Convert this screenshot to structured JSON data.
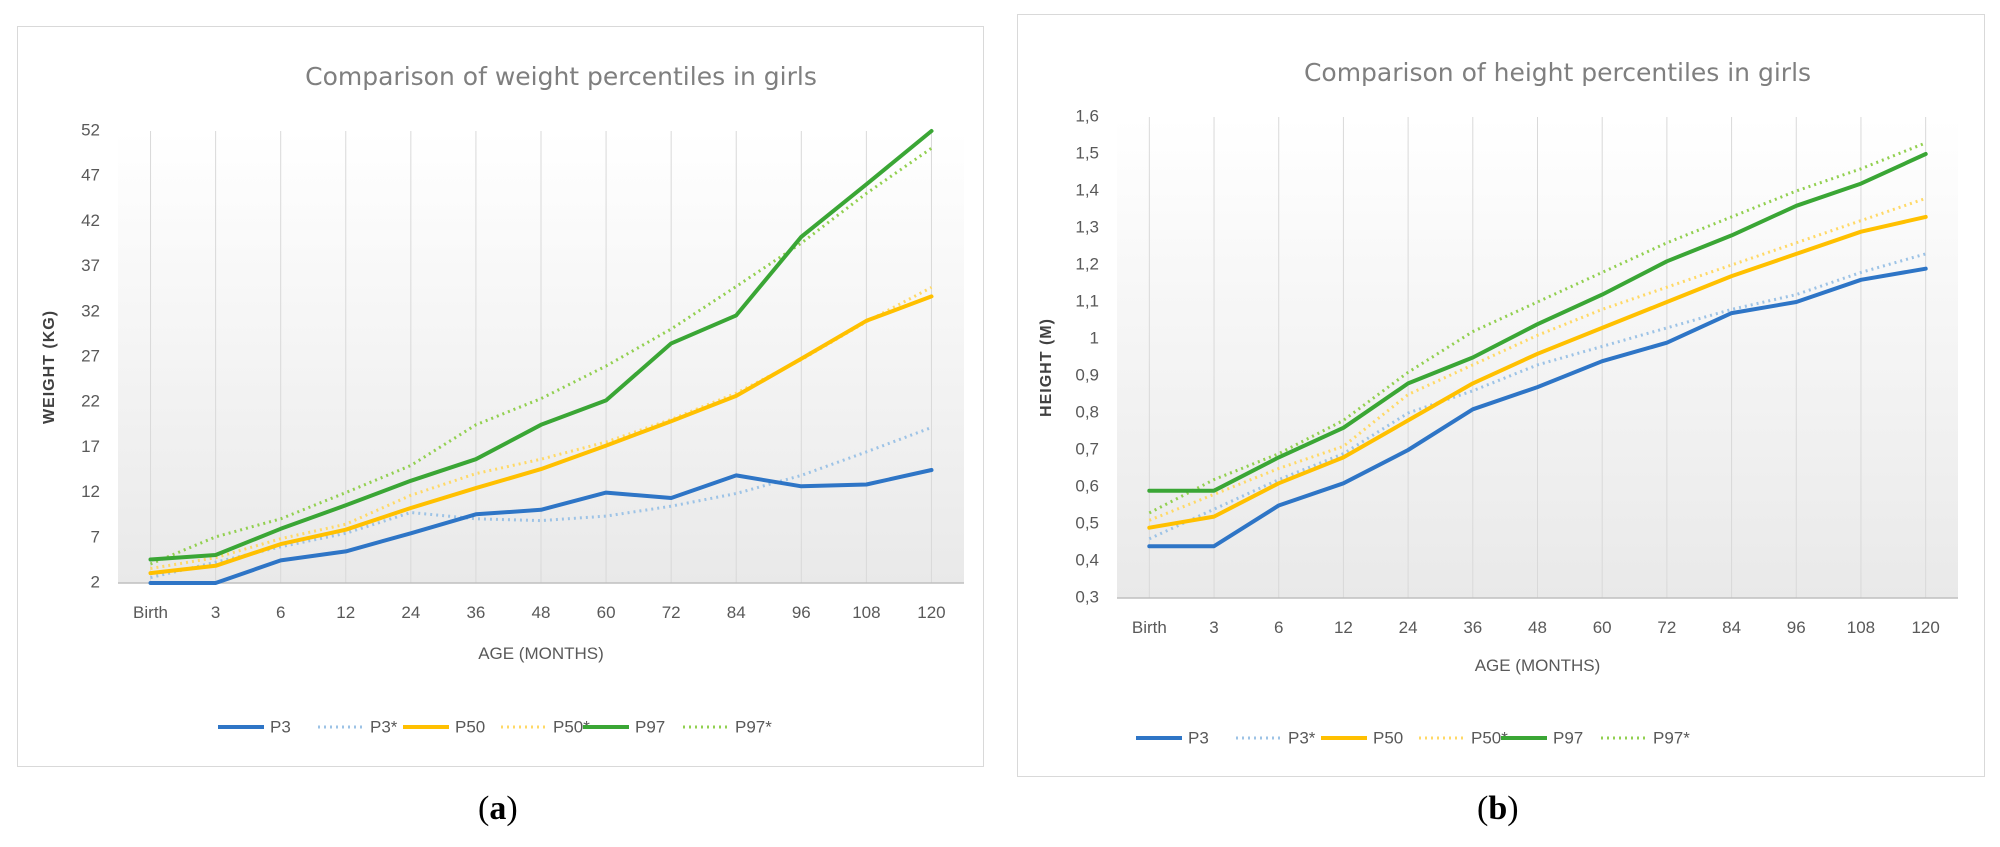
{
  "captions": {
    "a": {
      "open": "(",
      "letter": "a",
      "close": ")"
    },
    "b": {
      "open": "(",
      "letter": "b",
      "close": ")"
    }
  },
  "colors": {
    "P3": "#2e75c6",
    "P3*": "#9dc3e6",
    "P50": "#ffc000",
    "P50*": "#ffd966",
    "P97": "#3aa635",
    "P97*": "#92d050"
  },
  "chart_data": [
    {
      "type": "line",
      "title": "Comparison  of weight percentiles  in girls",
      "xlabel": "AGE (MONTHS)",
      "ylabel": "WEIGHT (KG)",
      "ylim": [
        2,
        52
      ],
      "yticks": [
        "2",
        "7",
        "12",
        "17",
        "22",
        "27",
        "32",
        "37",
        "42",
        "47",
        "52"
      ],
      "categories": [
        "Birth",
        "3",
        "6",
        "12",
        "24",
        "36",
        "48",
        "60",
        "72",
        "84",
        "96",
        "108",
        "120"
      ],
      "series": [
        {
          "name": "P3",
          "dashed": false,
          "values": [
            2.0,
            2.0,
            4.5,
            5.5,
            7.5,
            9.6,
            10.1,
            12.0,
            11.4,
            13.9,
            12.7,
            12.9,
            14.5
          ]
        },
        {
          "name": "P3*",
          "dashed": true,
          "values": [
            2.6,
            4.3,
            6.0,
            7.5,
            9.8,
            9.1,
            8.9,
            9.4,
            10.5,
            11.9,
            13.9,
            16.5,
            19.2
          ]
        },
        {
          "name": "P50",
          "dashed": false,
          "values": [
            3.1,
            3.9,
            6.3,
            7.9,
            10.3,
            12.5,
            14.6,
            17.2,
            19.9,
            22.7,
            26.8,
            31.0,
            33.7
          ]
        },
        {
          "name": "P50*",
          "dashed": true,
          "values": [
            3.6,
            4.8,
            6.9,
            8.5,
            11.7,
            14.1,
            15.7,
            17.6,
            20.1,
            23.0,
            26.7,
            30.9,
            34.7
          ]
        },
        {
          "name": "P97",
          "dashed": false,
          "values": [
            4.6,
            5.1,
            8.0,
            10.6,
            13.3,
            15.7,
            19.5,
            22.2,
            28.5,
            31.6,
            40.3,
            46.1,
            52.0
          ]
        },
        {
          "name": "P97*",
          "dashed": true,
          "values": [
            4.1,
            7.1,
            9.1,
            12.0,
            15.0,
            19.5,
            22.4,
            26.0,
            30.1,
            34.8,
            39.6,
            45.1,
            50.1
          ]
        }
      ],
      "legend": [
        "P3",
        "P3*",
        "P50",
        "P50*",
        "P97",
        "P97*"
      ],
      "legend_position": "bottom"
    },
    {
      "type": "line",
      "title": "Comparison  of height percentiles  in girls",
      "xlabel": "AGE (MONTHS)",
      "ylabel": "HEIGHT (M)",
      "ylim": [
        0.3,
        1.6
      ],
      "yticks": [
        "0,3",
        "0,4",
        "0,5",
        "0,6",
        "0,7",
        "0,8",
        "0,9",
        "1",
        "1,1",
        "1,2",
        "1,3",
        "1,4",
        "1,5",
        "1,6"
      ],
      "categories": [
        "Birth",
        "3",
        "6",
        "12",
        "24",
        "36",
        "48",
        "60",
        "72",
        "84",
        "96",
        "108",
        "120"
      ],
      "series": [
        {
          "name": "P3",
          "dashed": false,
          "values": [
            0.44,
            0.44,
            0.55,
            0.61,
            0.7,
            0.81,
            0.87,
            0.94,
            0.99,
            1.07,
            1.1,
            1.16,
            1.19
          ]
        },
        {
          "name": "P3*",
          "dashed": true,
          "values": [
            0.46,
            0.54,
            0.62,
            0.69,
            0.8,
            0.86,
            0.93,
            0.98,
            1.03,
            1.08,
            1.12,
            1.18,
            1.23
          ]
        },
        {
          "name": "P50",
          "dashed": false,
          "values": [
            0.49,
            0.52,
            0.61,
            0.68,
            0.78,
            0.88,
            0.96,
            1.03,
            1.1,
            1.17,
            1.23,
            1.29,
            1.33
          ]
        },
        {
          "name": "P50*",
          "dashed": true,
          "values": [
            0.51,
            0.58,
            0.65,
            0.71,
            0.85,
            0.93,
            1.01,
            1.08,
            1.14,
            1.2,
            1.26,
            1.32,
            1.38
          ]
        },
        {
          "name": "P97",
          "dashed": false,
          "values": [
            0.59,
            0.59,
            0.68,
            0.76,
            0.88,
            0.95,
            1.04,
            1.12,
            1.21,
            1.28,
            1.36,
            1.42,
            1.5
          ]
        },
        {
          "name": "P97*",
          "dashed": true,
          "values": [
            0.53,
            0.62,
            0.69,
            0.78,
            0.91,
            1.02,
            1.1,
            1.18,
            1.26,
            1.33,
            1.4,
            1.46,
            1.53
          ]
        }
      ],
      "legend": [
        "P3",
        "P3*",
        "P50",
        "P50*",
        "P97",
        "P97*"
      ],
      "legend_position": "bottom"
    }
  ]
}
